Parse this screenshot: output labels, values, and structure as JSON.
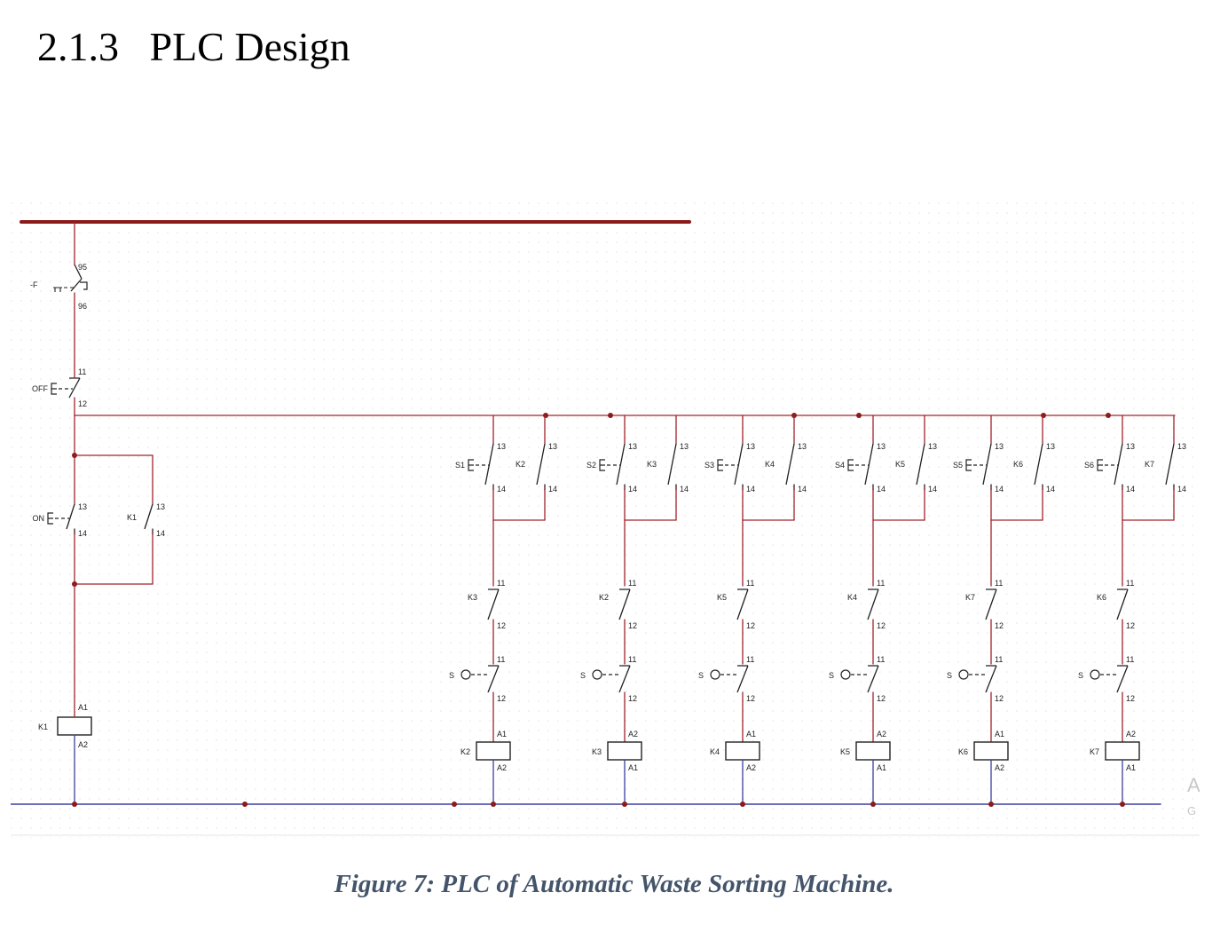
{
  "heading": {
    "number": "2.1.3",
    "title": "PLC Design"
  },
  "caption": "Figure 7: PLC of Automatic Waste Sorting Machine.",
  "colors": {
    "power_rail": "#8b1a1a",
    "wire": "#a0242b",
    "return_wire": "#3b3f9e",
    "node": "#8b1a1a",
    "component": "#222222"
  },
  "diagram": {
    "left": {
      "overload": {
        "tag": "-F",
        "pins": [
          "95",
          "96"
        ]
      },
      "off_button": {
        "tag": "OFF",
        "pins": [
          "11",
          "12"
        ]
      },
      "on_button": {
        "tag": "ON",
        "pins": [
          "13",
          "14"
        ]
      },
      "hold_contact": {
        "tag": "K1",
        "pins": [
          "13",
          "14"
        ]
      },
      "coil": {
        "tag": "K1",
        "pins": [
          "A1",
          "A2"
        ]
      }
    },
    "rungs": [
      {
        "button": "S1",
        "hold": "K2",
        "interlock": "K3",
        "sensor": "S",
        "coil": "K2",
        "coil_top": "A1",
        "coil_bottom": "A2"
      },
      {
        "button": "S2",
        "hold": "K3",
        "interlock": "K2",
        "sensor": "S",
        "coil": "K3",
        "coil_top": "A2",
        "coil_bottom": "A1"
      },
      {
        "button": "S3",
        "hold": "K4",
        "interlock": "K5",
        "sensor": "S",
        "coil": "K4",
        "coil_top": "A1",
        "coil_bottom": "A2"
      },
      {
        "button": "S4",
        "hold": "K5",
        "interlock": "K4",
        "sensor": "S",
        "coil": "K5",
        "coil_top": "A2",
        "coil_bottom": "A1"
      },
      {
        "button": "S5",
        "hold": "K6",
        "interlock": "K7",
        "sensor": "S",
        "coil": "K6",
        "coil_top": "A1",
        "coil_bottom": "A2"
      },
      {
        "button": "S6",
        "hold": "K7",
        "interlock": "K6",
        "sensor": "S",
        "coil": "K7",
        "coil_top": "A2",
        "coil_bottom": "A1"
      }
    ],
    "pins": {
      "no_top": "13",
      "no_bottom": "14",
      "nc_top": "11",
      "nc_bottom": "12"
    },
    "edge_text": [
      "A",
      "G"
    ]
  }
}
